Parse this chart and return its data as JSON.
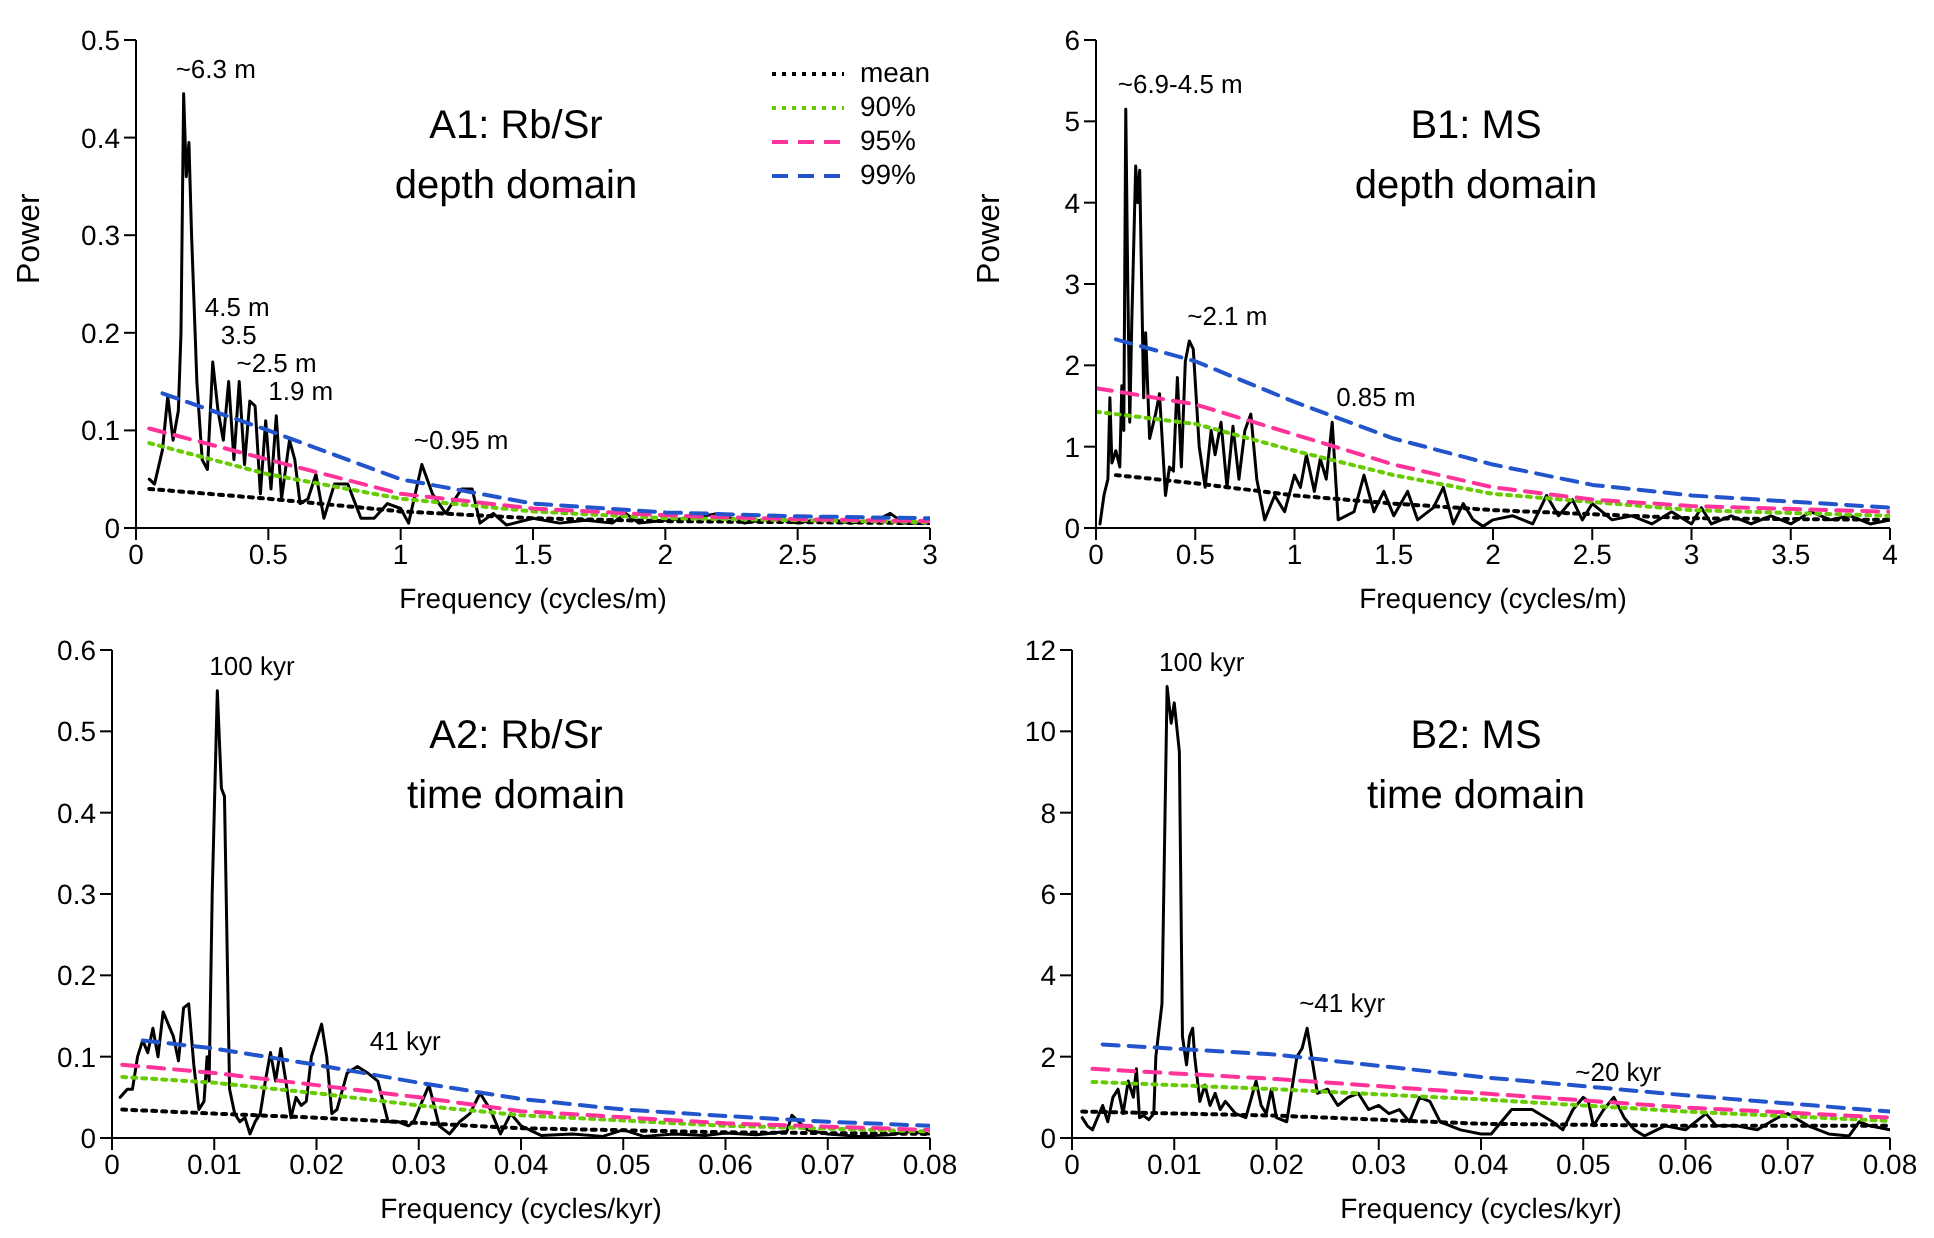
{
  "chart_data": [
    {
      "type": "line",
      "title": "A1: Rb/Sr",
      "subtitle": "depth domain",
      "xlabel": "Frequency (cycles/m)",
      "ylabel": "Power",
      "xlim": [
        0,
        3
      ],
      "xticks": [
        0,
        0.5,
        1,
        1.5,
        2,
        2.5,
        3
      ],
      "ylim": [
        0,
        0.5
      ],
      "yticks": [
        0,
        0.1,
        0.2,
        0.3,
        0.4,
        0.5
      ],
      "legend": "top right",
      "marker": "none",
      "annotations": [
        {
          "text": "~6.3 m",
          "x": 0.18,
          "y": 0.445
        },
        {
          "text": "4.5 m",
          "x": 0.29,
          "y": 0.17
        },
        {
          "text": "3.5",
          "x": 0.35,
          "y": 0.15
        },
        {
          "text": "~2.5 m",
          "x": 0.41,
          "y": 0.13
        },
        {
          "text": "1.9 m",
          "x": 0.53,
          "y": 0.115
        },
        {
          "text": "~0.95 m",
          "x": 1.08,
          "y": 0.065
        }
      ],
      "series": [
        {
          "color": "#000000",
          "line_style": "solid",
          "x": [
            0.05,
            0.07,
            0.1,
            0.12,
            0.14,
            0.16,
            0.17,
            0.18,
            0.19,
            0.2,
            0.21,
            0.23,
            0.25,
            0.27,
            0.29,
            0.31,
            0.33,
            0.35,
            0.37,
            0.39,
            0.41,
            0.43,
            0.45,
            0.47,
            0.49,
            0.51,
            0.53,
            0.55,
            0.58,
            0.6,
            0.62,
            0.65,
            0.68,
            0.71,
            0.75,
            0.8,
            0.85,
            0.9,
            0.95,
            1.0,
            1.03,
            1.08,
            1.12,
            1.17,
            1.23,
            1.27,
            1.3,
            1.35,
            1.4,
            1.5,
            1.6,
            1.7,
            1.8,
            1.85,
            1.9,
            2.0,
            2.1,
            2.2,
            2.3,
            2.4,
            2.5,
            2.6,
            2.7,
            2.8,
            2.85,
            2.9,
            3.0
          ],
          "values": [
            0.05,
            0.045,
            0.08,
            0.135,
            0.09,
            0.12,
            0.2,
            0.445,
            0.36,
            0.395,
            0.3,
            0.15,
            0.07,
            0.06,
            0.17,
            0.12,
            0.09,
            0.15,
            0.07,
            0.15,
            0.065,
            0.13,
            0.125,
            0.035,
            0.11,
            0.04,
            0.115,
            0.03,
            0.09,
            0.07,
            0.025,
            0.03,
            0.055,
            0.01,
            0.045,
            0.045,
            0.01,
            0.01,
            0.025,
            0.02,
            0.005,
            0.065,
            0.035,
            0.015,
            0.04,
            0.04,
            0.005,
            0.015,
            0.003,
            0.01,
            0.005,
            0.008,
            0.005,
            0.015,
            0.005,
            0.008,
            0.01,
            0.015,
            0.005,
            0.01,
            0.005,
            0.01,
            0.005,
            0.008,
            0.015,
            0.005,
            0.005
          ]
        },
        {
          "name": "mean",
          "color": "#000000",
          "line_style": "dotted",
          "x": [
            0.05,
            0.5,
            1,
            1.5,
            2,
            2.5,
            3
          ],
          "values": [
            0.04,
            0.03,
            0.017,
            0.01,
            0.007,
            0.006,
            0.005
          ]
        },
        {
          "name": "90%",
          "color": "#66cc00",
          "line_style": "dotted",
          "x": [
            0.05,
            0.5,
            1,
            1.5,
            2,
            2.5,
            3
          ],
          "values": [
            0.087,
            0.055,
            0.03,
            0.017,
            0.01,
            0.008,
            0.006
          ]
        },
        {
          "name": "95%",
          "color": "#ff3399",
          "line_style": "dashed",
          "x": [
            0.05,
            0.5,
            1,
            1.5,
            2,
            2.5,
            3
          ],
          "values": [
            0.102,
            0.07,
            0.035,
            0.02,
            0.013,
            0.009,
            0.007
          ]
        },
        {
          "name": "99%",
          "color": "#2255cc",
          "line_style": "dashed",
          "x": [
            0.1,
            0.5,
            1,
            1.5,
            2,
            2.5,
            3
          ],
          "values": [
            0.138,
            0.1,
            0.05,
            0.025,
            0.016,
            0.012,
            0.01
          ]
        }
      ]
    },
    {
      "type": "line",
      "title": "B1: MS",
      "subtitle": "depth domain",
      "xlabel": "Frequency (cycles/m)",
      "ylabel": "Power",
      "xlim": [
        0,
        4
      ],
      "xticks": [
        0,
        0.5,
        1,
        1.5,
        2,
        2.5,
        3,
        3.5,
        4
      ],
      "ylim": [
        0,
        6
      ],
      "yticks": [
        0,
        1,
        2,
        3,
        4,
        5,
        6
      ],
      "marker": "none",
      "annotations": [
        {
          "text": "~6.9-4.5 m",
          "x": 0.15,
          "y": 5.15
        },
        {
          "text": "~2.1 m",
          "x": 0.5,
          "y": 2.3
        },
        {
          "text": "0.85 m",
          "x": 1.25,
          "y": 1.3
        }
      ],
      "series": [
        {
          "color": "#000000",
          "line_style": "solid",
          "x": [
            0.02,
            0.04,
            0.06,
            0.07,
            0.08,
            0.1,
            0.12,
            0.13,
            0.14,
            0.15,
            0.16,
            0.17,
            0.18,
            0.2,
            0.21,
            0.22,
            0.24,
            0.25,
            0.27,
            0.3,
            0.32,
            0.35,
            0.37,
            0.39,
            0.41,
            0.43,
            0.45,
            0.47,
            0.49,
            0.52,
            0.55,
            0.58,
            0.6,
            0.63,
            0.66,
            0.69,
            0.72,
            0.75,
            0.78,
            0.81,
            0.85,
            0.9,
            0.95,
            1.0,
            1.03,
            1.06,
            1.1,
            1.13,
            1.16,
            1.19,
            1.22,
            1.3,
            1.35,
            1.4,
            1.45,
            1.5,
            1.57,
            1.62,
            1.7,
            1.75,
            1.8,
            1.85,
            1.9,
            1.95,
            2.0,
            2.1,
            2.2,
            2.27,
            2.33,
            2.4,
            2.45,
            2.5,
            2.6,
            2.7,
            2.8,
            2.9,
            3.0,
            3.05,
            3.1,
            3.2,
            3.3,
            3.4,
            3.5,
            3.6,
            3.7,
            3.8,
            3.9,
            4.0
          ],
          "values": [
            0.05,
            0.4,
            0.6,
            1.6,
            0.8,
            0.95,
            0.75,
            1.75,
            1.2,
            5.15,
            3.0,
            1.3,
            2.5,
            4.45,
            4.0,
            4.4,
            1.6,
            2.4,
            1.1,
            1.4,
            1.65,
            0.4,
            0.75,
            0.7,
            1.85,
            0.75,
            2.05,
            2.3,
            2.2,
            1.0,
            0.5,
            1.2,
            0.9,
            1.3,
            0.5,
            1.25,
            0.6,
            1.2,
            1.4,
            0.6,
            0.1,
            0.4,
            0.2,
            0.65,
            0.5,
            0.9,
            0.45,
            0.85,
            0.6,
            1.3,
            0.1,
            0.2,
            0.65,
            0.2,
            0.45,
            0.15,
            0.45,
            0.1,
            0.25,
            0.5,
            0.05,
            0.3,
            0.1,
            0.02,
            0.1,
            0.15,
            0.05,
            0.4,
            0.15,
            0.35,
            0.1,
            0.3,
            0.1,
            0.15,
            0.05,
            0.2,
            0.05,
            0.25,
            0.05,
            0.15,
            0.05,
            0.15,
            0.05,
            0.2,
            0.1,
            0.15,
            0.05,
            0.1
          ]
        },
        {
          "color": "#000000",
          "line_style": "dotted",
          "x": [
            0.1,
            0.5,
            1,
            1.5,
            2,
            3,
            4
          ],
          "values": [
            0.65,
            0.55,
            0.4,
            0.3,
            0.22,
            0.12,
            0.1
          ]
        },
        {
          "color": "#66cc00",
          "line_style": "dotted",
          "x": [
            0,
            0.5,
            1,
            1.5,
            2,
            3,
            4
          ],
          "values": [
            1.43,
            1.28,
            0.95,
            0.65,
            0.42,
            0.22,
            0.15
          ]
        },
        {
          "color": "#ff3399",
          "line_style": "dashed",
          "x": [
            0,
            0.5,
            1,
            1.5,
            2,
            2.5,
            3,
            4
          ],
          "values": [
            1.72,
            1.52,
            1.15,
            0.78,
            0.5,
            0.35,
            0.27,
            0.2
          ]
        },
        {
          "color": "#2255cc",
          "line_style": "dashed",
          "x": [
            0.1,
            0.5,
            1,
            1.5,
            2,
            2.5,
            3,
            4
          ],
          "values": [
            2.32,
            2.05,
            1.55,
            1.1,
            0.78,
            0.53,
            0.4,
            0.25
          ]
        }
      ]
    },
    {
      "type": "line",
      "title": "A2: Rb/Sr",
      "subtitle": "time domain",
      "xlabel": "Frequency (cycles/kyr)",
      "xlim": [
        0,
        0.08
      ],
      "xticks": [
        0,
        0.01,
        0.02,
        0.03,
        0.04,
        0.05,
        0.06,
        0.07,
        0.08
      ],
      "ylim": [
        0,
        0.6
      ],
      "yticks": [
        0,
        0.1,
        0.2,
        0.3,
        0.4,
        0.5,
        0.6
      ],
      "marker": "none",
      "annotations": [
        {
          "text": "100 kyr",
          "x": 0.0103,
          "y": 0.55
        },
        {
          "text": "41 kyr",
          "x": 0.026,
          "y": 0.088
        }
      ],
      "series": [
        {
          "color": "#000000",
          "line_style": "solid",
          "x": [
            0.0008,
            0.0015,
            0.002,
            0.0025,
            0.003,
            0.0035,
            0.004,
            0.0045,
            0.005,
            0.0055,
            0.006,
            0.0065,
            0.007,
            0.0075,
            0.008,
            0.0085,
            0.009,
            0.0093,
            0.0095,
            0.0098,
            0.0103,
            0.0107,
            0.011,
            0.0115,
            0.012,
            0.0125,
            0.013,
            0.0135,
            0.014,
            0.0145,
            0.015,
            0.0155,
            0.016,
            0.0165,
            0.017,
            0.0175,
            0.018,
            0.0185,
            0.019,
            0.0195,
            0.0205,
            0.021,
            0.0215,
            0.022,
            0.023,
            0.024,
            0.025,
            0.026,
            0.027,
            0.028,
            0.029,
            0.0295,
            0.031,
            0.032,
            0.033,
            0.034,
            0.035,
            0.036,
            0.037,
            0.038,
            0.039,
            0.04,
            0.042,
            0.045,
            0.048,
            0.05,
            0.052,
            0.055,
            0.058,
            0.06,
            0.063,
            0.066,
            0.0665,
            0.068,
            0.07,
            0.073,
            0.076,
            0.078,
            0.08
          ],
          "values": [
            0.05,
            0.06,
            0.06,
            0.1,
            0.12,
            0.105,
            0.135,
            0.1,
            0.155,
            0.14,
            0.125,
            0.095,
            0.16,
            0.165,
            0.09,
            0.035,
            0.045,
            0.1,
            0.07,
            0.3,
            0.55,
            0.43,
            0.42,
            0.06,
            0.03,
            0.02,
            0.025,
            0.005,
            0.02,
            0.03,
            0.07,
            0.105,
            0.07,
            0.11,
            0.07,
            0.025,
            0.05,
            0.04,
            0.045,
            0.1,
            0.14,
            0.1,
            0.03,
            0.035,
            0.08,
            0.088,
            0.08,
            0.07,
            0.02,
            0.02,
            0.015,
            0.02,
            0.065,
            0.015,
            0.005,
            0.02,
            0.03,
            0.055,
            0.035,
            0.005,
            0.03,
            0.015,
            0.003,
            0.005,
            0.002,
            0.01,
            0.002,
            0.005,
            0.003,
            0.006,
            0.004,
            0.008,
            0.028,
            0.01,
            0.005,
            0.002,
            0.004,
            0.008,
            0.005
          ]
        },
        {
          "color": "#000000",
          "line_style": "dotted",
          "x": [
            0.001,
            0.01,
            0.02,
            0.04,
            0.06,
            0.08
          ],
          "values": [
            0.035,
            0.03,
            0.025,
            0.012,
            0.007,
            0.005
          ]
        },
        {
          "color": "#66cc00",
          "line_style": "dotted",
          "x": [
            0.001,
            0.01,
            0.02,
            0.03,
            0.04,
            0.06,
            0.08
          ],
          "values": [
            0.075,
            0.068,
            0.055,
            0.04,
            0.028,
            0.015,
            0.008
          ]
        },
        {
          "color": "#ff3399",
          "line_style": "dashed",
          "x": [
            0.001,
            0.01,
            0.02,
            0.03,
            0.04,
            0.06,
            0.08
          ],
          "values": [
            0.09,
            0.08,
            0.065,
            0.05,
            0.033,
            0.018,
            0.01
          ]
        },
        {
          "color": "#2255cc",
          "line_style": "dashed",
          "x": [
            0.003,
            0.01,
            0.02,
            0.03,
            0.04,
            0.05,
            0.06,
            0.07,
            0.08
          ],
          "values": [
            0.12,
            0.11,
            0.09,
            0.068,
            0.048,
            0.035,
            0.027,
            0.02,
            0.015
          ]
        }
      ]
    },
    {
      "type": "line",
      "title": "B2: MS",
      "subtitle": "time domain",
      "xlabel": "Frequency (cycles/kyr)",
      "xlim": [
        0,
        0.08
      ],
      "xticks": [
        0,
        0.01,
        0.02,
        0.03,
        0.04,
        0.05,
        0.06,
        0.07,
        0.08
      ],
      "ylim": [
        0,
        12
      ],
      "yticks": [
        0,
        2,
        4,
        6,
        8,
        10,
        12
      ],
      "marker": "none",
      "annotations": [
        {
          "text": "100 kyr",
          "x": 0.0093,
          "y": 11.1
        },
        {
          "text": "~41 kyr",
          "x": 0.023,
          "y": 2.7
        },
        {
          "text": "~20 kyr",
          "x": 0.05,
          "y": 1.0
        }
      ],
      "series": [
        {
          "color": "#000000",
          "line_style": "solid",
          "x": [
            0.001,
            0.0015,
            0.002,
            0.003,
            0.0035,
            0.004,
            0.0045,
            0.005,
            0.0055,
            0.006,
            0.0063,
            0.0066,
            0.007,
            0.0075,
            0.008,
            0.0082,
            0.0088,
            0.0093,
            0.0097,
            0.01,
            0.0105,
            0.0108,
            0.0112,
            0.0115,
            0.0118,
            0.012,
            0.0125,
            0.013,
            0.0135,
            0.014,
            0.0145,
            0.015,
            0.016,
            0.017,
            0.018,
            0.0185,
            0.019,
            0.0195,
            0.02,
            0.021,
            0.022,
            0.0225,
            0.023,
            0.0235,
            0.024,
            0.025,
            0.026,
            0.027,
            0.028,
            0.029,
            0.03,
            0.031,
            0.032,
            0.033,
            0.034,
            0.035,
            0.036,
            0.037,
            0.038,
            0.04,
            0.041,
            0.042,
            0.043,
            0.045,
            0.047,
            0.048,
            0.049,
            0.05,
            0.0505,
            0.051,
            0.052,
            0.053,
            0.054,
            0.055,
            0.056,
            0.058,
            0.06,
            0.062,
            0.063,
            0.065,
            0.067,
            0.069,
            0.07,
            0.072,
            0.074,
            0.076,
            0.077,
            0.078,
            0.08
          ],
          "values": [
            0.5,
            0.3,
            0.2,
            0.8,
            0.4,
            1.0,
            1.2,
            0.6,
            1.4,
            1.0,
            1.7,
            0.5,
            0.55,
            0.45,
            0.6,
            2.0,
            3.3,
            11.1,
            10.2,
            10.7,
            9.5,
            2.5,
            1.8,
            2.5,
            2.7,
            2.0,
            0.9,
            1.3,
            0.8,
            1.1,
            0.7,
            0.9,
            0.6,
            0.5,
            1.4,
            0.8,
            0.6,
            1.2,
            0.5,
            0.4,
            2.0,
            2.2,
            2.7,
            1.9,
            1.1,
            1.2,
            0.8,
            1.0,
            1.1,
            0.7,
            0.8,
            0.6,
            0.7,
            0.4,
            1.0,
            0.9,
            0.4,
            0.3,
            0.2,
            0.1,
            0.1,
            0.4,
            0.7,
            0.7,
            0.4,
            0.2,
            0.7,
            1.0,
            0.9,
            0.3,
            0.7,
            1.0,
            0.5,
            0.2,
            0.05,
            0.3,
            0.2,
            0.6,
            0.3,
            0.3,
            0.2,
            0.5,
            0.6,
            0.3,
            0.1,
            0.05,
            0.4,
            0.3,
            0.2
          ]
        },
        {
          "color": "#000000",
          "line_style": "dotted",
          "x": [
            0.001,
            0.02,
            0.04,
            0.06,
            0.08
          ],
          "values": [
            0.65,
            0.55,
            0.35,
            0.3,
            0.3
          ]
        },
        {
          "color": "#66cc00",
          "line_style": "dotted",
          "x": [
            0.002,
            0.02,
            0.04,
            0.06,
            0.08
          ],
          "values": [
            1.38,
            1.2,
            0.95,
            0.65,
            0.42
          ]
        },
        {
          "color": "#ff3399",
          "line_style": "dashed",
          "x": [
            0.002,
            0.02,
            0.04,
            0.06,
            0.08
          ],
          "values": [
            1.7,
            1.45,
            1.1,
            0.75,
            0.5
          ]
        },
        {
          "color": "#2255cc",
          "line_style": "dashed",
          "x": [
            0.003,
            0.02,
            0.04,
            0.06,
            0.08
          ],
          "values": [
            2.3,
            2.05,
            1.5,
            1.05,
            0.65
          ]
        }
      ]
    }
  ]
}
